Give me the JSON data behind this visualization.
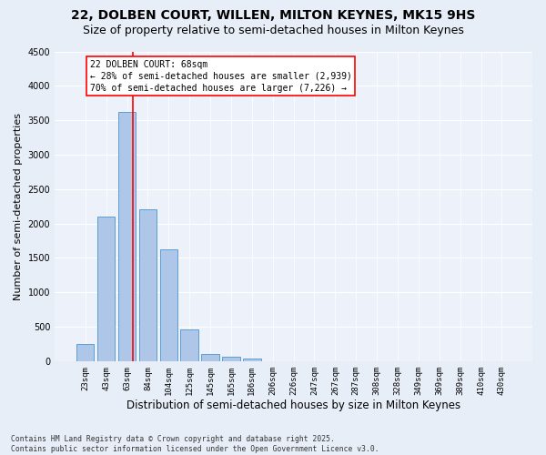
{
  "title": "22, DOLBEN COURT, WILLEN, MILTON KEYNES, MK15 9HS",
  "subtitle": "Size of property relative to semi-detached houses in Milton Keynes",
  "xlabel": "Distribution of semi-detached houses by size in Milton Keynes",
  "ylabel": "Number of semi-detached properties",
  "footer": "Contains HM Land Registry data © Crown copyright and database right 2025.\nContains public sector information licensed under the Open Government Licence v3.0.",
  "bar_labels": [
    "23sqm",
    "43sqm",
    "63sqm",
    "84sqm",
    "104sqm",
    "125sqm",
    "145sqm",
    "165sqm",
    "186sqm",
    "206sqm",
    "226sqm",
    "247sqm",
    "267sqm",
    "287sqm",
    "308sqm",
    "328sqm",
    "349sqm",
    "369sqm",
    "389sqm",
    "410sqm",
    "430sqm"
  ],
  "bar_values": [
    250,
    2100,
    3620,
    2200,
    1620,
    460,
    110,
    60,
    40,
    0,
    0,
    0,
    0,
    0,
    0,
    0,
    0,
    0,
    0,
    0,
    0
  ],
  "bar_color": "#aec6e8",
  "bar_edge_color": "#5a9fd4",
  "red_line_bar_index": 2,
  "annotation_title": "22 DOLBEN COURT: 68sqm",
  "annotation_line1": "← 28% of semi-detached houses are smaller (2,939)",
  "annotation_line2": "70% of semi-detached houses are larger (7,226) →",
  "ylim": [
    0,
    4500
  ],
  "yticks": [
    0,
    500,
    1000,
    1500,
    2000,
    2500,
    3000,
    3500,
    4000,
    4500
  ],
  "bg_color": "#e8eef8",
  "plot_bg_color": "#edf2fa",
  "grid_color": "#ffffff",
  "title_fontsize": 10,
  "subtitle_fontsize": 9,
  "annotation_fontsize": 7,
  "tick_fontsize": 6.5,
  "ylabel_fontsize": 8,
  "xlabel_fontsize": 8.5
}
